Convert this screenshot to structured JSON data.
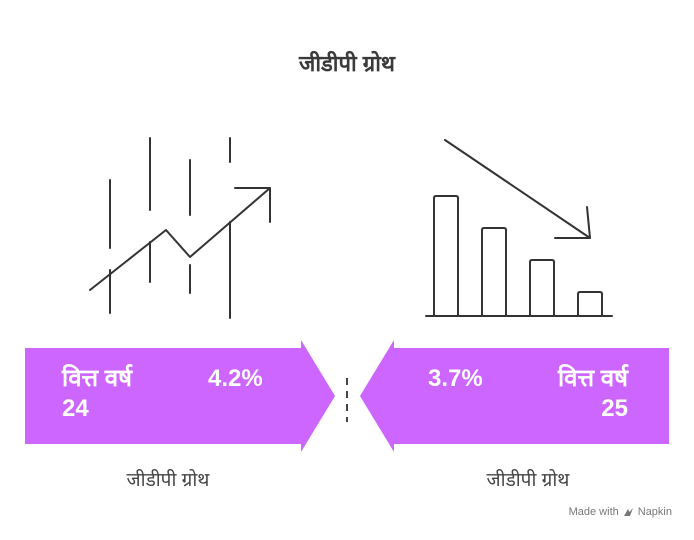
{
  "title": "जीडीपी ग्रोथ",
  "left": {
    "year_label_line1": "वित्त वर्ष",
    "year_label_line2": "24",
    "value": "4.2%",
    "caption": "जीडीपी ग्रोथ",
    "icon": "rising-trend-line-icon"
  },
  "right": {
    "year_label_line1": "वित्त वर्ष",
    "year_label_line2": "25",
    "value": "3.7%",
    "caption": "जीडीपी ग्रोथ",
    "icon": "declining-bar-chart-icon"
  },
  "credit": {
    "made_with": "Made with",
    "brand": "Napkin"
  },
  "colors": {
    "banner": "#cc66ff",
    "stroke": "#333333",
    "text_on_banner": "#ffffff"
  }
}
